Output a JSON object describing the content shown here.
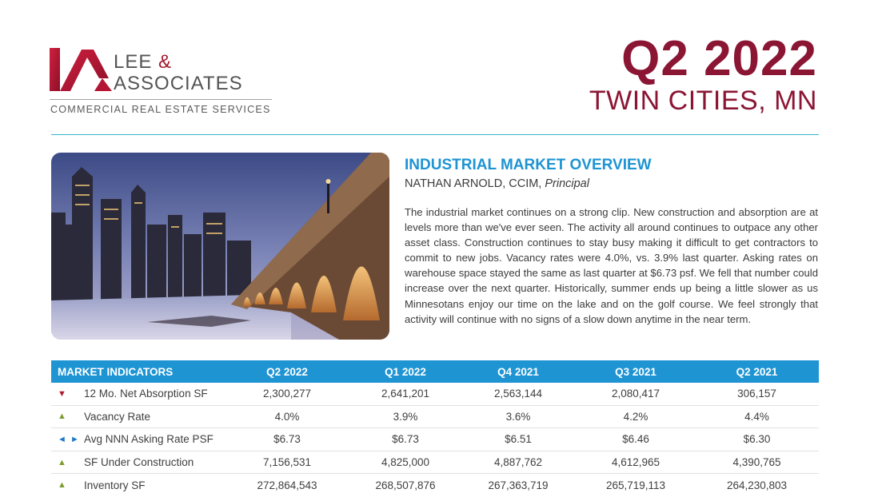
{
  "logo": {
    "name_line1": "LEE ",
    "ampersand": "&",
    "name_line2": "ASSOCIATES",
    "tagline": "COMMERCIAL REAL ESTATE SERVICES",
    "brand_color": "#a6192e"
  },
  "header": {
    "quarter": "Q2 2022",
    "market": "TWIN CITIES, MN",
    "title_color": "#8b1634",
    "rule_color": "#35b6c9"
  },
  "photo": {
    "icon": "city-skyline-stone-arch-bridge-photo"
  },
  "overview": {
    "title": "INDUSTRIAL MARKET OVERVIEW",
    "author_name": "NATHAN ARNOLD, CCIM, ",
    "author_role": "Principal",
    "body": "The industrial market continues on a strong clip. New construction and absorption are at levels more than we've ever seen. The activity all around continues to outpace any other asset class.  Construction continues to stay busy making it difficult to get contractors to commit to new jobs. Vacancy rates were 4.0%, vs. 3.9% last quarter. Asking rates on warehouse space stayed the same as last quarter at $6.73 psf.  We fell that number could increase over the next quarter. Historically, summer ends up being a little slower as us Minnesotans enjoy our time on the lake and on the golf course. We feel strongly that activity will continue with no signs of a slow down anytime in the near term.",
    "title_color": "#1e94d3"
  },
  "table": {
    "header_color": "#1e94d3",
    "headers": [
      "MARKET INDICATORS",
      "Q2 2022",
      "Q1 2022",
      "Q4 2021",
      "Q3 2021",
      "Q2 2021"
    ],
    "rows": [
      {
        "indicator": "▼",
        "trend": "down",
        "label": "12 Mo. Net Absorption SF",
        "values": [
          "2,300,277",
          "2,641,201",
          "2,563,144",
          "2,080,417",
          "306,157"
        ]
      },
      {
        "indicator": "▲",
        "trend": "up",
        "label": "Vacancy Rate",
        "values": [
          "4.0%",
          "3.9%",
          "3.6%",
          "4.2%",
          "4.4%"
        ]
      },
      {
        "indicator": "◄ ►",
        "trend": "flat",
        "label": "Avg NNN Asking Rate PSF",
        "values": [
          "$6.73",
          "$6.73",
          "$6.51",
          "$6.46",
          "$6.30"
        ]
      },
      {
        "indicator": "▲",
        "trend": "up",
        "label": "SF Under Construction",
        "values": [
          "7,156,531",
          "4,825,000",
          "4,887,762",
          "4,612,965",
          "4,390,765"
        ]
      },
      {
        "indicator": "▲",
        "trend": "up",
        "label": "Inventory SF",
        "values": [
          "272,864,543",
          "268,507,876",
          "267,363,719",
          "265,719,113",
          "264,230,803"
        ]
      }
    ]
  }
}
